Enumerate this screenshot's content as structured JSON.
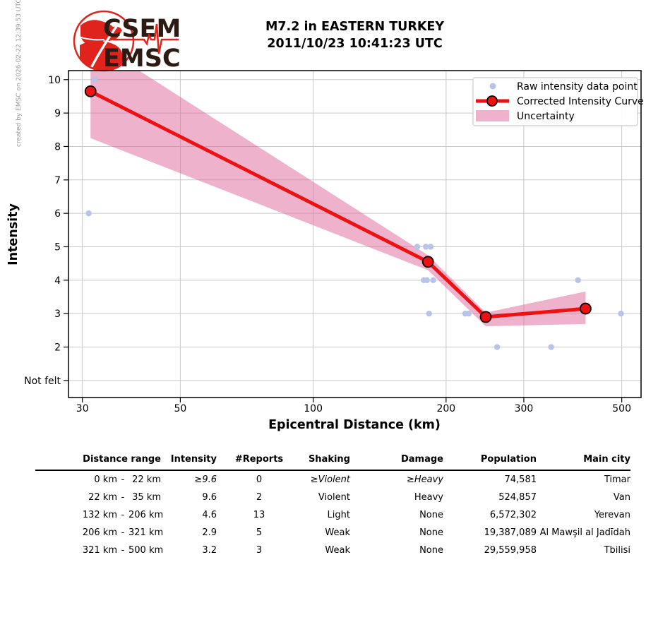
{
  "side_note": "created by EMSC on 2026-02-22 12:39:53 UTC",
  "logo": {
    "top": "CSEM",
    "bottom": "EMSC"
  },
  "title": {
    "line1": "M7.2 in EASTERN TURKEY",
    "line2": "2011/10/23 10:41:23 UTC"
  },
  "colors": {
    "curve_red": "#ee1111",
    "marker_edge": "#000000",
    "raw_point": "#b6c4ea",
    "band": "#dd6699",
    "grid": "#c9c9c9",
    "plot_border": "#000000",
    "legend_border": "#cccccc",
    "side_text": "#999999",
    "logo_red": "#e0231c",
    "logo_dark": "#2b1b12"
  },
  "chart_data": {
    "type": "line",
    "title": "M7.2 in EASTERN TURKEY 2011/10/23 10:41:23 UTC",
    "xlabel": "Epicentral Distance (km)",
    "ylabel": "Intensity",
    "x_scale": "log",
    "xlim": [
      27.9,
      553
    ],
    "ylim": [
      0.49,
      10.27
    ],
    "grid": true,
    "x_ticks": [
      {
        "v": 30,
        "label": "30"
      },
      {
        "v": 50,
        "label": "50"
      },
      {
        "v": 100,
        "label": "100"
      },
      {
        "v": 200,
        "label": "200"
      },
      {
        "v": 300,
        "label": "300"
      },
      {
        "v": 500,
        "label": "500"
      }
    ],
    "y_ticks": [
      {
        "v": 10,
        "label": "10"
      },
      {
        "v": 9,
        "label": "9"
      },
      {
        "v": 8,
        "label": "8"
      },
      {
        "v": 7,
        "label": "7"
      },
      {
        "v": 6,
        "label": "6"
      },
      {
        "v": 5,
        "label": "5"
      },
      {
        "v": 4,
        "label": "4"
      },
      {
        "v": 3,
        "label": "3"
      },
      {
        "v": 2,
        "label": "2"
      },
      {
        "v": 1,
        "label": "Not felt"
      }
    ],
    "raw_points": [
      [
        32,
        10
      ],
      [
        31,
        6
      ],
      [
        172,
        5
      ],
      [
        180,
        5
      ],
      [
        184.5,
        5
      ],
      [
        178,
        4
      ],
      [
        181,
        4
      ],
      [
        187,
        4
      ],
      [
        183,
        3
      ],
      [
        221,
        3
      ],
      [
        225,
        3
      ],
      [
        261,
        2
      ],
      [
        346,
        2
      ],
      [
        398,
        4
      ],
      [
        498,
        3
      ]
    ],
    "corrected_curve": {
      "x": [
        31.3,
        182,
        246,
        414
      ],
      "y": [
        9.65,
        4.55,
        2.9,
        3.15
      ]
    },
    "uncertainty_band": {
      "x": [
        31.3,
        182,
        246,
        414
      ],
      "upper": [
        11.2,
        4.75,
        3.03,
        3.66
      ],
      "lower": [
        8.25,
        4.3,
        2.62,
        2.69
      ]
    },
    "legend": {
      "position": "upper right",
      "items": [
        {
          "type": "dot",
          "label": "Raw intensity data point"
        },
        {
          "type": "line",
          "label": "Corrected Intensity Curve"
        },
        {
          "type": "band",
          "label": "Uncertainty"
        }
      ]
    }
  },
  "table": {
    "headers": [
      "Distance range",
      "Intensity",
      "#Reports",
      "Shaking",
      "Damage",
      "Population",
      "Main city"
    ],
    "sep": "-",
    "rows": [
      {
        "from": "0 km",
        "to": "22 km",
        "intensity": "≥9.6",
        "reports": "0",
        "shaking": "≥Violent",
        "damage": "≥Heavy",
        "population": "74,581",
        "city": "Timar"
      },
      {
        "from": "22 km",
        "to": "35 km",
        "intensity": "9.6",
        "reports": "2",
        "shaking": "Violent",
        "damage": "Heavy",
        "population": "524,857",
        "city": "Van"
      },
      {
        "from": "132 km",
        "to": "206 km",
        "intensity": "4.6",
        "reports": "13",
        "shaking": "Light",
        "damage": "None",
        "population": "6,572,302",
        "city": "Yerevan"
      },
      {
        "from": "206 km",
        "to": "321 km",
        "intensity": "2.9",
        "reports": "5",
        "shaking": "Weak",
        "damage": "None",
        "population": "19,387,089",
        "city": "Al Mawşil al Jadīdah"
      },
      {
        "from": "321 km",
        "to": "500 km",
        "intensity": "3.2",
        "reports": "3",
        "shaking": "Weak",
        "damage": "None",
        "population": "29,559,958",
        "city": "Tbilisi"
      }
    ]
  }
}
